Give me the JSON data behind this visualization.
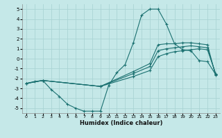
{
  "xlabel": "Humidex (Indice chaleur)",
  "bg_color": "#c5e8e8",
  "line_color": "#1a7070",
  "grid_color": "#aad4d4",
  "xlim": [
    -0.5,
    23.5
  ],
  "ylim": [
    -5.5,
    5.5
  ],
  "xticks": [
    0,
    1,
    2,
    3,
    4,
    5,
    6,
    7,
    8,
    9,
    10,
    11,
    12,
    13,
    14,
    15,
    16,
    17,
    18,
    19,
    20,
    21,
    22,
    23
  ],
  "yticks": [
    -5,
    -4,
    -3,
    -2,
    -1,
    0,
    1,
    2,
    3,
    4,
    5
  ],
  "lines": [
    {
      "x": [
        0,
        1,
        2,
        3,
        4,
        5,
        6,
        7,
        8,
        9,
        10,
        11,
        12,
        13,
        14,
        15,
        16,
        17,
        18,
        19,
        20,
        21,
        22,
        23
      ],
      "y": [
        -2.5,
        -2.3,
        -2.2,
        -3.1,
        -3.8,
        -4.6,
        -5.0,
        -5.3,
        -5.3,
        -5.3,
        -2.7,
        -1.4,
        -0.6,
        1.6,
        4.4,
        5.0,
        5.0,
        3.5,
        1.5,
        0.9,
        0.8,
        -0.2,
        -0.3,
        -1.6
      ],
      "markers_at": [
        0,
        1,
        2,
        3,
        4,
        5,
        6,
        7,
        8,
        9,
        10,
        11,
        12,
        13,
        14,
        15,
        16,
        17,
        18,
        19,
        20,
        21,
        22,
        23
      ]
    },
    {
      "x": [
        0,
        2,
        9,
        13,
        15,
        16,
        17,
        18,
        19,
        20,
        21,
        22,
        23
      ],
      "y": [
        -2.5,
        -2.2,
        -2.8,
        -1.3,
        -0.5,
        1.4,
        1.5,
        1.5,
        1.6,
        1.6,
        1.5,
        1.4,
        -1.7
      ],
      "markers_at": [
        0,
        2,
        9,
        13,
        15,
        16,
        17,
        18,
        19,
        20,
        21,
        22,
        23
      ]
    },
    {
      "x": [
        0,
        2,
        9,
        13,
        15,
        16,
        17,
        18,
        19,
        20,
        21,
        22,
        23
      ],
      "y": [
        -2.5,
        -2.2,
        -2.8,
        -1.5,
        -0.8,
        0.8,
        1.0,
        1.1,
        1.2,
        1.3,
        1.2,
        1.1,
        -1.6
      ],
      "markers_at": [
        0,
        2,
        9,
        13,
        15,
        16,
        17,
        18,
        19,
        20,
        21,
        22,
        23
      ]
    },
    {
      "x": [
        0,
        2,
        9,
        13,
        15,
        16,
        17,
        18,
        19,
        20,
        21,
        22,
        23
      ],
      "y": [
        -2.5,
        -2.2,
        -2.8,
        -1.8,
        -1.2,
        0.2,
        0.5,
        0.7,
        0.8,
        0.9,
        1.0,
        0.9,
        -1.5
      ],
      "markers_at": [
        0,
        2,
        9,
        13,
        15,
        16,
        17,
        18,
        19,
        20,
        21,
        22,
        23
      ]
    }
  ]
}
